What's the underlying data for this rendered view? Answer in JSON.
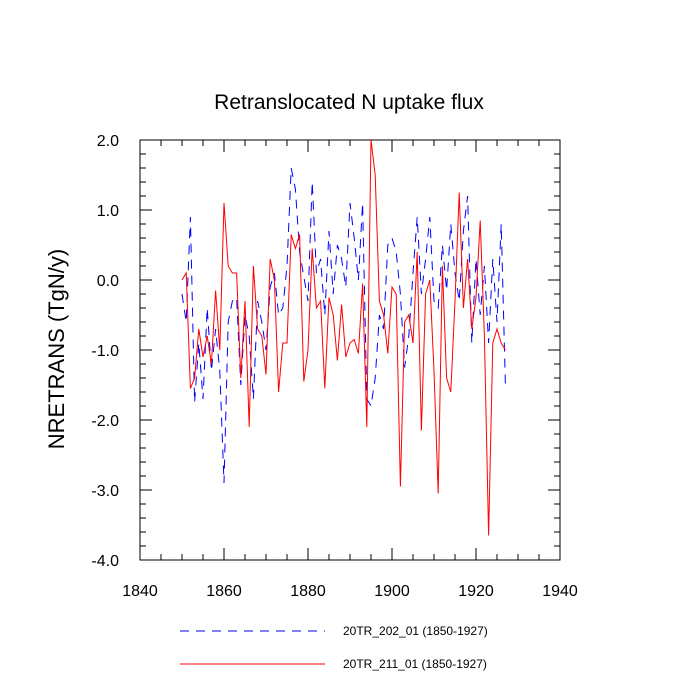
{
  "chart_data": {
    "type": "line",
    "title": "Retranslocated N uptake flux",
    "xlabel": "",
    "ylabel": "NRETRANS  (TgN/y)",
    "xlim": [
      1840,
      1940
    ],
    "ylim": [
      -4.0,
      2.0
    ],
    "x_ticks": [
      1840,
      1860,
      1880,
      1900,
      1920,
      1940
    ],
    "x_tick_labels": [
      "1840",
      "1860",
      "1880",
      "1900",
      "1920",
      "1940"
    ],
    "y_ticks": [
      2.0,
      1.0,
      0.0,
      -1.0,
      -2.0,
      -3.0,
      -4.0
    ],
    "y_tick_labels": [
      "2.0",
      "1.0",
      "0.0",
      "-1.0",
      "-2.0",
      "-3.0",
      "-4.0"
    ],
    "x": [
      1850,
      1851,
      1852,
      1853,
      1854,
      1855,
      1856,
      1857,
      1858,
      1859,
      1860,
      1861,
      1862,
      1863,
      1864,
      1865,
      1866,
      1867,
      1868,
      1869,
      1870,
      1871,
      1872,
      1873,
      1874,
      1875,
      1876,
      1877,
      1878,
      1879,
      1880,
      1881,
      1882,
      1883,
      1884,
      1885,
      1886,
      1887,
      1888,
      1889,
      1890,
      1891,
      1892,
      1893,
      1894,
      1895,
      1896,
      1897,
      1898,
      1899,
      1900,
      1901,
      1902,
      1903,
      1904,
      1905,
      1906,
      1907,
      1908,
      1909,
      1910,
      1911,
      1912,
      1913,
      1914,
      1915,
      1916,
      1917,
      1918,
      1919,
      1920,
      1921,
      1922,
      1923,
      1924,
      1925,
      1926,
      1927
    ],
    "series": [
      {
        "name": "20TR_202_01 (1850-1927)",
        "color": "#0000ff",
        "style": "dashed",
        "values": [
          -0.2,
          -0.6,
          0.9,
          -1.75,
          -0.9,
          -1.7,
          -0.4,
          -1.3,
          -0.7,
          -1.3,
          -2.9,
          -0.6,
          -0.3,
          -0.25,
          -1.5,
          -0.5,
          -0.8,
          -1.7,
          -0.3,
          -0.6,
          -1.0,
          -0.1,
          0.1,
          -0.5,
          -0.4,
          0.2,
          1.6,
          1.3,
          0.4,
          0.05,
          -0.3,
          1.4,
          0.1,
          0.3,
          -0.5,
          0.7,
          -0.2,
          0.5,
          0.3,
          -0.1,
          1.1,
          0.6,
          0.0,
          1.1,
          -1.7,
          -1.8,
          -1.4,
          -0.5,
          -0.7,
          0.5,
          0.6,
          0.4,
          -0.2,
          -1.25,
          -0.8,
          0.1,
          0.9,
          -0.2,
          0.3,
          0.9,
          -0.3,
          -0.4,
          0.5,
          -0.15,
          0.8,
          0.1,
          -0.3,
          0.7,
          1.2,
          -0.9,
          0.3,
          -0.5,
          0.2,
          -0.9,
          0.3,
          -0.6,
          0.8,
          -1.5
        ]
      },
      {
        "name": "20TR_211_01 (1850-1927)",
        "color": "#ff0000",
        "style": "solid",
        "values": [
          0.0,
          0.1,
          -1.55,
          -1.4,
          -0.7,
          -1.1,
          -0.8,
          -1.2,
          -0.15,
          -1.0,
          1.1,
          0.2,
          0.1,
          0.1,
          -1.4,
          -0.3,
          -2.1,
          0.2,
          -0.7,
          -0.8,
          -1.35,
          0.3,
          0.0,
          -1.6,
          -0.9,
          -0.9,
          0.65,
          0.45,
          0.65,
          -1.45,
          -1.0,
          0.45,
          -0.4,
          -0.3,
          -1.55,
          -0.25,
          -0.5,
          -1.15,
          -0.35,
          -1.1,
          -0.9,
          -0.85,
          -1.05,
          -0.05,
          -2.1,
          2.0,
          1.5,
          -0.3,
          -0.5,
          -1.05,
          -0.1,
          -0.2,
          -2.95,
          -0.6,
          -0.5,
          -0.9,
          0.4,
          -2.15,
          -0.2,
          0.0,
          -1.3,
          -3.05,
          0.2,
          -1.4,
          -1.6,
          -0.3,
          1.25,
          -0.4,
          0.3,
          -0.7,
          -0.25,
          0.85,
          -0.8,
          -3.65,
          -0.9,
          -0.7,
          -0.9,
          -1.0
        ]
      }
    ],
    "legend": [
      {
        "label": "20TR_202_01 (1850-1927)",
        "color": "#0000ff",
        "style": "dashed"
      },
      {
        "label": "20TR_211_01 (1850-1927)",
        "color": "#ff0000",
        "style": "solid"
      }
    ],
    "legend_position": "bottom"
  }
}
